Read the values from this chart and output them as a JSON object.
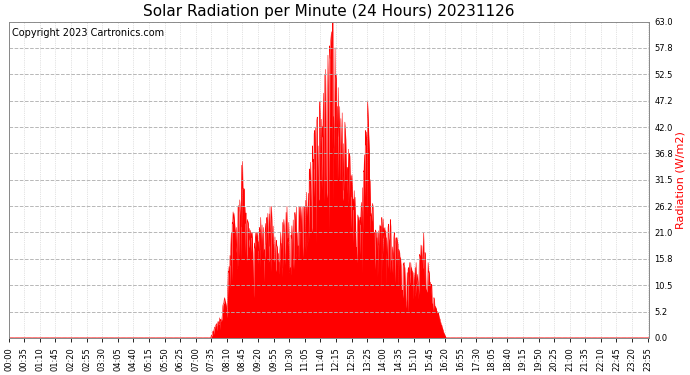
{
  "title": "Solar Radiation per Minute (24 Hours) 20231126",
  "copyright": "Copyright 2023 Cartronics.com",
  "ylabel": "Radiation (W/m2)",
  "ylabel_color": "#ff0000",
  "bar_color": "#ff0000",
  "bg_color": "#ffffff",
  "plot_bg_color": "#ffffff",
  "grid_color": "#b0b0b0",
  "zero_line_color": "#ff0000",
  "ylim": [
    0.0,
    63.0
  ],
  "yticks": [
    0.0,
    5.2,
    10.5,
    15.8,
    21.0,
    26.2,
    31.5,
    36.8,
    42.0,
    47.2,
    52.5,
    57.8,
    63.0
  ],
  "title_fontsize": 11,
  "copyright_fontsize": 7,
  "ylabel_fontsize": 8,
  "tick_fontsize": 6,
  "xtick_labels": [
    "00:00",
    "00:35",
    "01:10",
    "01:45",
    "02:20",
    "02:55",
    "03:30",
    "04:05",
    "04:40",
    "05:15",
    "05:50",
    "06:25",
    "07:00",
    "07:35",
    "08:10",
    "08:45",
    "09:20",
    "09:55",
    "10:30",
    "11:05",
    "11:40",
    "12:15",
    "12:50",
    "13:25",
    "14:00",
    "14:35",
    "15:10",
    "15:45",
    "16:20",
    "16:55",
    "17:30",
    "18:05",
    "18:40",
    "19:15",
    "19:50",
    "20:25",
    "21:00",
    "21:35",
    "22:10",
    "22:45",
    "23:20",
    "23:55"
  ]
}
